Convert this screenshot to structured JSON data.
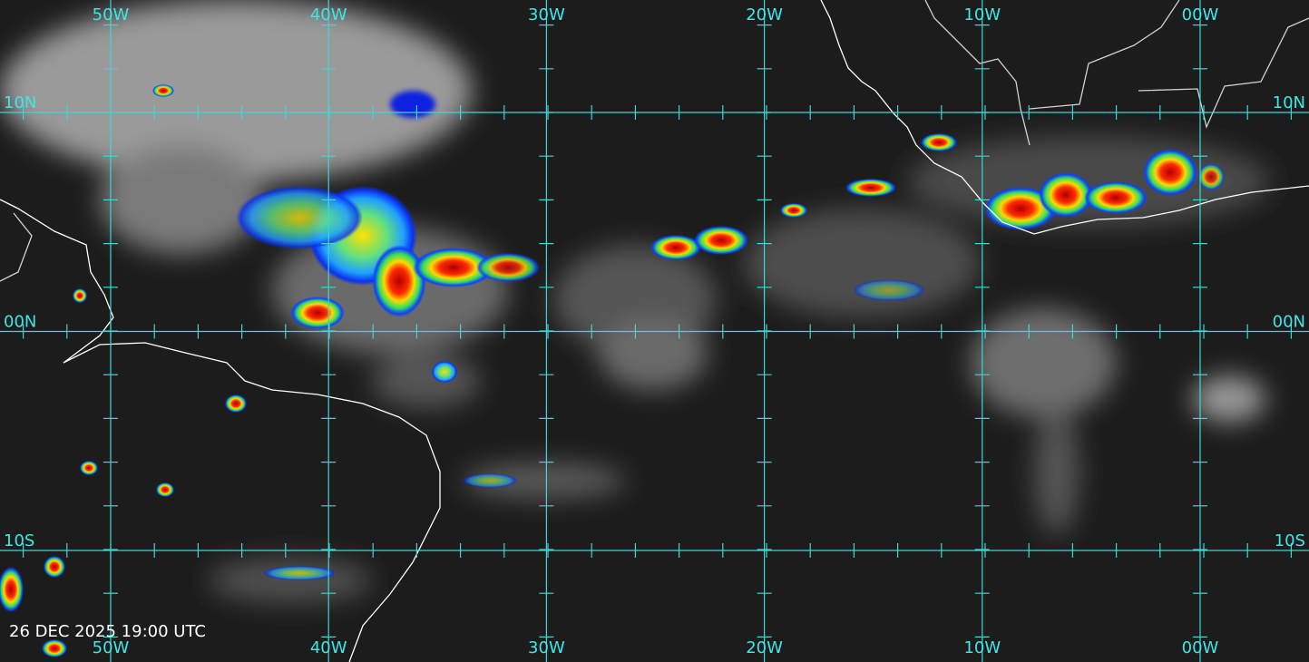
{
  "longitude_labels": [
    "50W",
    "40W",
    "30W",
    "20W",
    "10W",
    "00W"
  ],
  "latitude_labels": [
    "10N",
    "00N",
    "10S"
  ],
  "timestamp": "26 DEC 2025 19:00 UTC"
}
